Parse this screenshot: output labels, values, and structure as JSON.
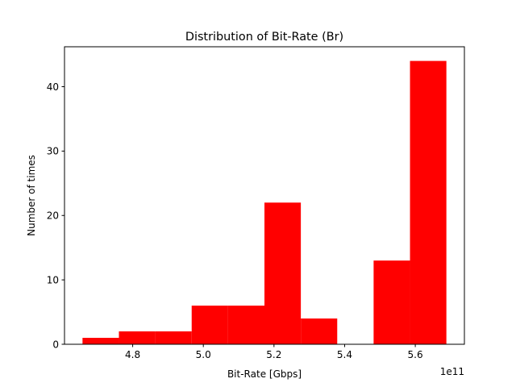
{
  "chart_data": {
    "type": "bar",
    "title": "Distribution of Bit-Rate (Br)",
    "xlabel": "Bit-Rate [Gbps]",
    "ylabel": "Number of times",
    "x_offset_label": "1e11",
    "bin_edges": [
      4.658,
      4.761,
      4.864,
      4.967,
      5.07,
      5.173,
      5.276,
      5.379,
      5.482,
      5.585,
      5.688
    ],
    "values": [
      1,
      2,
      2,
      6,
      6,
      22,
      4,
      0,
      13,
      44
    ],
    "xlim": [
      4.607,
      5.739
    ],
    "ylim": [
      0,
      46.2
    ],
    "x_ticks": [
      {
        "value": 4.8,
        "label": "4.8"
      },
      {
        "value": 5.0,
        "label": "5.0"
      },
      {
        "value": 5.2,
        "label": "5.2"
      },
      {
        "value": 5.4,
        "label": "5.4"
      },
      {
        "value": 5.6,
        "label": "5.6"
      }
    ],
    "y_ticks": [
      {
        "value": 0,
        "label": "0"
      },
      {
        "value": 10,
        "label": "10"
      },
      {
        "value": 20,
        "label": "20"
      },
      {
        "value": 30,
        "label": "30"
      },
      {
        "value": 40,
        "label": "40"
      }
    ],
    "bar_color": "#ff0000",
    "grid": false,
    "legend": "none"
  }
}
